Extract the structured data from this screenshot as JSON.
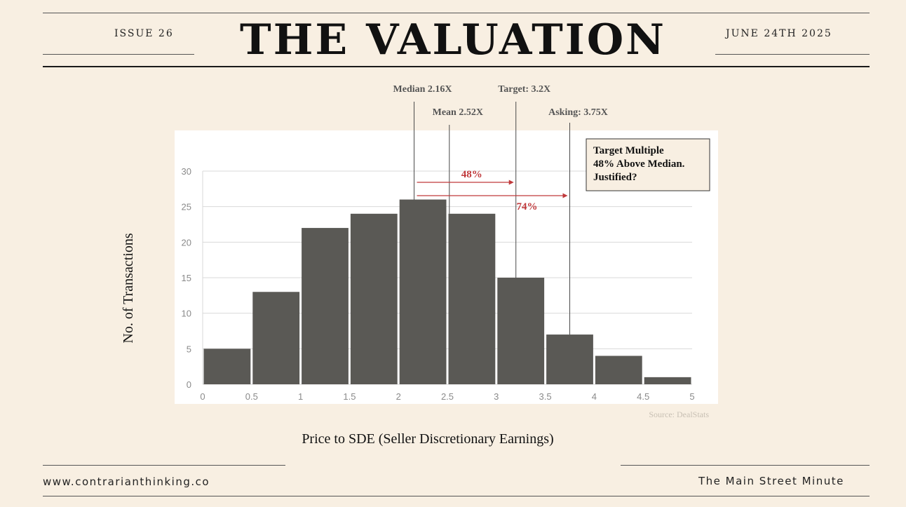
{
  "header": {
    "issue": "ISSUE 26",
    "title": "THE VALUATION",
    "date": "JUNE 24TH 2025"
  },
  "footer": {
    "website": "www.contrarianthinking.co",
    "brand": "The Main Street Minute"
  },
  "chart_data": {
    "type": "bar",
    "bin_edges": [
      0,
      0.5,
      1,
      1.5,
      2,
      2.5,
      3,
      3.5,
      4,
      4.5,
      5
    ],
    "values": [
      5,
      13,
      22,
      24,
      26,
      24,
      15,
      7,
      4,
      1
    ],
    "x_tick_labels": [
      "0",
      "0.5",
      "1",
      "1.5",
      "2",
      "2.5",
      "3",
      "3.5",
      "4",
      "4.5",
      "5"
    ],
    "y_tick_labels": [
      "0",
      "5",
      "10",
      "15",
      "20",
      "25",
      "30"
    ],
    "xlim": [
      0,
      5
    ],
    "ylim": [
      0,
      30
    ],
    "xlabel": "Price to SDE (Seller Discretionary Earnings)",
    "ylabel": "No. of Transactions",
    "source": "Source: DealStats",
    "bar_color": "#5a5955",
    "accent_color": "#c0393b",
    "markers": [
      {
        "label": "Median 2.16X",
        "value": 2.16
      },
      {
        "label": "Mean 2.52X",
        "value": 2.52
      },
      {
        "label": "Target: 3.2X",
        "value": 3.2
      },
      {
        "label": "Asking: 3.75X",
        "value": 3.75
      }
    ],
    "annotations": [
      {
        "label": "48%",
        "from": 2.16,
        "to": 3.2
      },
      {
        "label": "74%",
        "from": 2.16,
        "to": 3.75
      }
    ],
    "callout": [
      "Target Multiple",
      "48% Above Median.",
      "Justified?"
    ]
  }
}
